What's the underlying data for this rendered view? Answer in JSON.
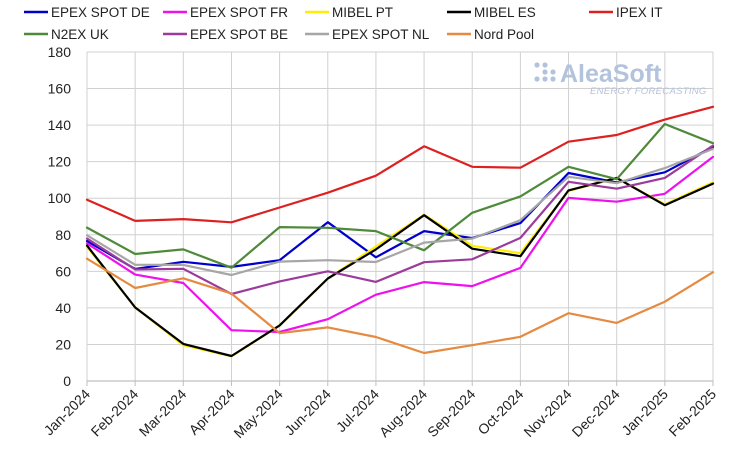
{
  "logo": {
    "main": "AleaSoft",
    "sub": "ENERGY FORECASTING",
    "color": "#b3c2dd"
  },
  "chart_data": {
    "type": "line",
    "title": "",
    "xlabel": "",
    "ylabel": "",
    "ylim": [
      0,
      180
    ],
    "yticks": [
      0,
      20,
      40,
      60,
      80,
      100,
      120,
      140,
      160,
      180
    ],
    "grid": "vertical and horizontal",
    "legend_position": "top",
    "x": [
      "Jan-2024",
      "Feb-2024",
      "Mar-2024",
      "Apr-2024",
      "May-2024",
      "Jun-2024",
      "Jul-2024",
      "Aug-2024",
      "Sep-2024",
      "Oct-2024",
      "Nov-2024",
      "Dec-2024",
      "Jan-2025",
      "Feb-2025"
    ],
    "series": [
      {
        "name": "EPEX SPOT DE",
        "color": "#0000cc",
        "values": [
          76.6,
          61.3,
          65.2,
          62.4,
          66.1,
          86.9,
          67.7,
          82.0,
          78.2,
          86.4,
          113.8,
          108.6,
          114.2,
          128.1
        ]
      },
      {
        "name": "EPEX SPOT FR",
        "color": "#ee11ee",
        "values": [
          75.3,
          58.2,
          53.6,
          27.8,
          26.8,
          33.8,
          47.2,
          54.1,
          51.9,
          61.9,
          100.2,
          98.1,
          102.4,
          122.6
        ]
      },
      {
        "name": "MIBEL PT",
        "color": "#ffee00",
        "values": [
          73.4,
          40.3,
          19.6,
          13.5,
          30.3,
          56.0,
          73.6,
          91.0,
          74.0,
          69.9,
          104.0,
          111.0,
          96.6,
          108.7
        ]
      },
      {
        "name": "MIBEL ES",
        "color": "#000000",
        "values": [
          74.1,
          40.2,
          20.3,
          13.7,
          30.4,
          56.1,
          72.0,
          90.7,
          72.4,
          68.3,
          104.3,
          111.1,
          96.2,
          108.0
        ]
      },
      {
        "name": "IPEX IT",
        "color": "#dd2020",
        "values": [
          99.2,
          87.6,
          88.6,
          86.8,
          94.9,
          103.0,
          112.3,
          128.4,
          117.2,
          116.7,
          130.9,
          134.6,
          143.0,
          150.0
        ]
      },
      {
        "name": "N2EX UK",
        "color": "#4e8a3a",
        "values": [
          83.9,
          69.5,
          72.0,
          62.0,
          84.2,
          83.8,
          82.0,
          71.5,
          92.0,
          101.0,
          117.2,
          110.4,
          140.6,
          130.1
        ]
      },
      {
        "name": "EPEX SPOT BE",
        "color": "#9b3c9b",
        "values": [
          77.9,
          61.0,
          61.4,
          47.6,
          54.5,
          60.0,
          54.2,
          65.0,
          66.6,
          78.3,
          109.0,
          105.2,
          111.1,
          128.8
        ]
      },
      {
        "name": "EPEX SPOT NL",
        "color": "#a6a6a6",
        "values": [
          79.7,
          63.6,
          63.5,
          58.0,
          65.3,
          66.1,
          65.1,
          75.7,
          77.9,
          88.0,
          111.7,
          108.2,
          116.5,
          127.0
        ]
      },
      {
        "name": "Nord Pool",
        "color": "#e58a40",
        "values": [
          66.9,
          50.9,
          56.2,
          47.8,
          26.2,
          29.3,
          24.1,
          15.3,
          19.6,
          24.2,
          37.1,
          31.8,
          43.4,
          59.5
        ]
      }
    ]
  }
}
